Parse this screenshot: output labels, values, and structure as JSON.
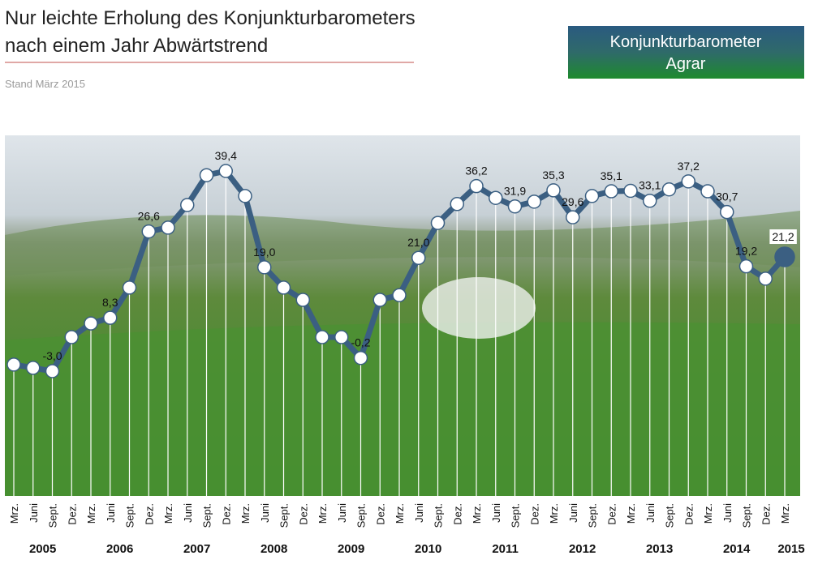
{
  "header": {
    "title": [
      "Nur leichte Erholung des Konjunkturbarometers",
      "nach einem Jahr Abwärtstrend"
    ],
    "subtitle": "Stand März 2015",
    "badge": [
      "Konjunkturbarometer",
      "Agrar"
    ]
  },
  "chart_data": {
    "type": "line",
    "color": "#3b5f82",
    "categories": [
      "Mrz.",
      "Juni",
      "Sept.",
      "Dez.",
      "Mrz.",
      "Juni",
      "Sept.",
      "Dez.",
      "Mrz.",
      "Juni",
      "Sept.",
      "Dez.",
      "Mrz.",
      "Juni",
      "Sept.",
      "Dez.",
      "Mrz.",
      "Juni",
      "Sept.",
      "Dez.",
      "Mrz.",
      "Juni",
      "Sept.",
      "Dez.",
      "Mrz.",
      "Juni",
      "Sept.",
      "Dez.",
      "Mrz.",
      "Juni",
      "Sept.",
      "Dez.",
      "Mrz.",
      "Juni",
      "Sept.",
      "Dez.",
      "Mrz.",
      "Juni",
      "Sept.",
      "Dez.",
      "Mrz."
    ],
    "years": [
      "2005",
      "2006",
      "2007",
      "2008",
      "2009",
      "2010",
      "2011",
      "2012",
      "2013",
      "2014",
      "2015"
    ],
    "values": [
      -1.6,
      -2.3,
      -3.0,
      4.2,
      7.1,
      8.3,
      14.7,
      26.6,
      27.4,
      32.2,
      38.5,
      39.4,
      34.1,
      19.0,
      14.7,
      12.1,
      4.2,
      4.2,
      -0.2,
      12.1,
      13.1,
      21.0,
      28.4,
      32.4,
      36.2,
      33.7,
      31.9,
      32.9,
      35.3,
      29.6,
      34.1,
      35.1,
      35.2,
      33.1,
      35.5,
      37.2,
      35.1,
      30.7,
      19.2,
      16.6,
      21.2
    ],
    "value_labels": [
      null,
      null,
      "-3,0",
      null,
      null,
      "8,3",
      null,
      "26,6",
      null,
      null,
      null,
      "39,4",
      null,
      "19,0",
      null,
      null,
      null,
      null,
      "-0,2",
      null,
      null,
      "21,0",
      null,
      null,
      "36,2",
      null,
      "31,9",
      null,
      "35,3",
      "29,6",
      null,
      "35,1",
      null,
      "33,1",
      null,
      "37,2",
      null,
      "30,7",
      "19,2",
      null,
      "21,2"
    ]
  }
}
